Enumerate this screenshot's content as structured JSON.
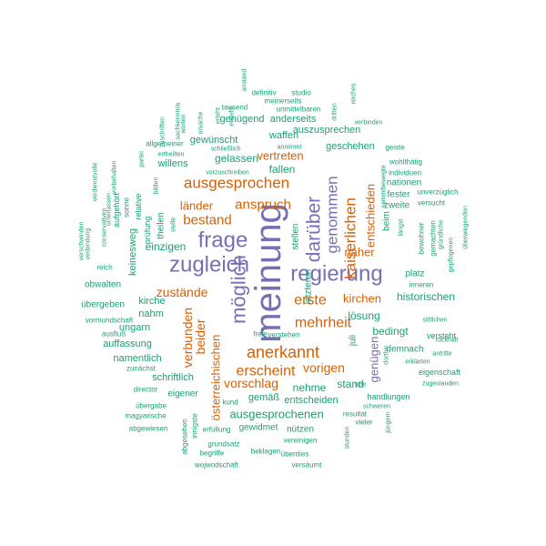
{
  "palette": {
    "purple": "#7570b3",
    "orange": "#d95f02",
    "teal": "#1b9e77"
  },
  "words": [
    {
      "text": "meinung",
      "color": "purple"
    },
    {
      "text": "regierung",
      "color": "purple"
    },
    {
      "text": "zugleich",
      "color": "purple"
    },
    {
      "text": "frage",
      "color": "purple"
    },
    {
      "text": "möglich",
      "color": "purple"
    },
    {
      "text": "darüber",
      "color": "purple"
    },
    {
      "text": "anerkannt",
      "color": "orange"
    },
    {
      "text": "ausgesprochen",
      "color": "orange"
    },
    {
      "text": "kaiserlichen",
      "color": "orange"
    },
    {
      "text": "genommen",
      "color": "purple"
    },
    {
      "text": "mehrheit",
      "color": "orange"
    },
    {
      "text": "erste",
      "color": "orange"
    },
    {
      "text": "anspruch",
      "color": "orange"
    },
    {
      "text": "österreichischen",
      "color": "orange"
    },
    {
      "text": "erscheint",
      "color": "orange"
    },
    {
      "text": "bestand",
      "color": "orange"
    },
    {
      "text": "vorigen",
      "color": "orange"
    },
    {
      "text": "vorschlag",
      "color": "orange"
    },
    {
      "text": "zustände",
      "color": "orange"
    },
    {
      "text": "beider",
      "color": "orange"
    },
    {
      "text": "verbunden",
      "color": "orange"
    },
    {
      "text": "entschieden",
      "color": "orange"
    },
    {
      "text": "genügen",
      "color": "purple"
    },
    {
      "text": "vertreten",
      "color": "orange"
    },
    {
      "text": "ausgesprochenen",
      "color": "teal"
    },
    {
      "text": "näher",
      "color": "orange"
    },
    {
      "text": "kirchen",
      "color": "orange"
    },
    {
      "text": "länder",
      "color": "orange"
    },
    {
      "text": "fallen",
      "color": "teal"
    },
    {
      "text": "gelassen",
      "color": "teal"
    },
    {
      "text": "nehme",
      "color": "teal"
    },
    {
      "text": "stand",
      "color": "teal"
    },
    {
      "text": "lösung",
      "color": "teal"
    },
    {
      "text": "bedingt",
      "color": "teal"
    },
    {
      "text": "historischen",
      "color": "teal"
    },
    {
      "text": "einzigen",
      "color": "teal"
    },
    {
      "text": "nahm",
      "color": "teal"
    },
    {
      "text": "kirche",
      "color": "teal"
    },
    {
      "text": "ungarn",
      "color": "teal"
    },
    {
      "text": "auffassung",
      "color": "teal"
    },
    {
      "text": "namentlich",
      "color": "teal"
    },
    {
      "text": "schriftlich",
      "color": "teal"
    },
    {
      "text": "gemäß",
      "color": "teal"
    },
    {
      "text": "entscheiden",
      "color": "teal"
    },
    {
      "text": "geschehen",
      "color": "teal"
    },
    {
      "text": "gewünscht",
      "color": "teal"
    },
    {
      "text": "waffen",
      "color": "teal"
    },
    {
      "text": "auszusprechen",
      "color": "teal"
    },
    {
      "text": "genügend",
      "color": "teal"
    },
    {
      "text": "anderseits",
      "color": "teal"
    },
    {
      "text": "willens",
      "color": "teal"
    },
    {
      "text": "keinesweg",
      "color": "teal"
    },
    {
      "text": "theilen",
      "color": "teal"
    },
    {
      "text": "letzteren",
      "color": "teal"
    },
    {
      "text": "stellen",
      "color": "teal"
    },
    {
      "text": "juli",
      "color": "teal"
    },
    {
      "text": "platz",
      "color": "teal"
    },
    {
      "text": "beim",
      "color": "teal"
    },
    {
      "text": "nationen",
      "color": "teal"
    },
    {
      "text": "fester",
      "color": "teal"
    },
    {
      "text": "zweite",
      "color": "teal"
    },
    {
      "text": "demnach",
      "color": "teal"
    },
    {
      "text": "nützen",
      "color": "teal"
    },
    {
      "text": "gewidmet",
      "color": "teal"
    },
    {
      "text": "eigener",
      "color": "teal"
    },
    {
      "text": "übergeben",
      "color": "teal"
    },
    {
      "text": "obwalten",
      "color": "teal"
    },
    {
      "text": "prüfung",
      "color": "teal"
    },
    {
      "text": "relative",
      "color": "teal"
    },
    {
      "text": "aufgehört",
      "color": "teal"
    },
    {
      "text": "verstehen",
      "color": "teal"
    },
    {
      "text": "freie",
      "color": "teal"
    },
    {
      "text": "versteht",
      "color": "teal"
    },
    {
      "text": "eigenschaft",
      "color": "teal"
    },
    {
      "text": "handlungen",
      "color": "teal"
    },
    {
      "text": "resultat",
      "color": "teal"
    },
    {
      "text": "vereinigen",
      "color": "teal"
    },
    {
      "text": "überdies",
      "color": "teal"
    },
    {
      "text": "versäumt",
      "color": "teal"
    },
    {
      "text": "erfüllung",
      "color": "teal"
    },
    {
      "text": "grundsatz",
      "color": "teal"
    },
    {
      "text": "begriffe",
      "color": "teal"
    },
    {
      "text": "beklagen",
      "color": "teal"
    },
    {
      "text": "wojwodschaft",
      "color": "teal"
    },
    {
      "text": "abgesehen",
      "color": "teal"
    },
    {
      "text": "innigste",
      "color": "teal"
    },
    {
      "text": "kund",
      "color": "teal"
    },
    {
      "text": "director",
      "color": "teal"
    },
    {
      "text": "übergabe",
      "color": "teal"
    },
    {
      "text": "magyarische",
      "color": "teal"
    },
    {
      "text": "abgewiesen",
      "color": "teal"
    },
    {
      "text": "zunächst",
      "color": "teal"
    },
    {
      "text": "ausfluß",
      "color": "teal"
    },
    {
      "text": "vormundschaft",
      "color": "teal"
    },
    {
      "text": "verbindung",
      "color": "teal"
    },
    {
      "text": "reich",
      "color": "teal"
    },
    {
      "text": "verschwinden",
      "color": "teal"
    },
    {
      "text": "verdienstvolle",
      "color": "teal"
    },
    {
      "text": "conservativen",
      "color": "teal"
    },
    {
      "text": "unterlassen",
      "color": "teal"
    },
    {
      "text": "vorbehalten",
      "color": "teal"
    },
    {
      "text": "sonne",
      "color": "teal"
    },
    {
      "text": "bilden",
      "color": "teal"
    },
    {
      "text": "partei",
      "color": "teal"
    },
    {
      "text": "zuschriften",
      "color": "teal"
    },
    {
      "text": "worten",
      "color": "teal"
    },
    {
      "text": "ursache",
      "color": "teal"
    },
    {
      "text": "sachkenntnis",
      "color": "teal"
    },
    {
      "text": "stelle",
      "color": "teal"
    },
    {
      "text": "erteht",
      "color": "teal"
    },
    {
      "text": "ersteht",
      "color": "teal"
    },
    {
      "text": "tausend",
      "color": "teal"
    },
    {
      "text": "definitiv",
      "color": "teal"
    },
    {
      "text": "studio",
      "color": "teal"
    },
    {
      "text": "anstand",
      "color": "teal"
    },
    {
      "text": "meinerseits",
      "color": "teal"
    },
    {
      "text": "unmittelbaren",
      "color": "teal"
    },
    {
      "text": "dritten",
      "color": "teal"
    },
    {
      "text": "reiches",
      "color": "teal"
    },
    {
      "text": "verbinden",
      "color": "teal"
    },
    {
      "text": "allgemeiner",
      "color": "teal"
    },
    {
      "text": "ertheilten",
      "color": "teal"
    },
    {
      "text": "schließlich",
      "color": "teal"
    },
    {
      "text": "annimmt",
      "color": "teal"
    },
    {
      "text": "vorzuschreiben",
      "color": "teal"
    },
    {
      "text": "geiste",
      "color": "teal"
    },
    {
      "text": "wohlthätig",
      "color": "teal"
    },
    {
      "text": "individuen",
      "color": "teal"
    },
    {
      "text": "sammtbewegte",
      "color": "teal"
    },
    {
      "text": "unverzüglich",
      "color": "teal"
    },
    {
      "text": "versucht",
      "color": "teal"
    },
    {
      "text": "längst",
      "color": "teal"
    },
    {
      "text": "bewohner",
      "color": "teal"
    },
    {
      "text": "gemachten",
      "color": "teal"
    },
    {
      "text": "gründliche",
      "color": "teal"
    },
    {
      "text": "gepflogenen",
      "color": "teal"
    },
    {
      "text": "überwiegenden",
      "color": "teal"
    },
    {
      "text": "inneren",
      "color": "teal"
    },
    {
      "text": "sittlichen",
      "color": "teal"
    },
    {
      "text": "rückhalt",
      "color": "teal"
    },
    {
      "text": "antritte",
      "color": "teal"
    },
    {
      "text": "erklärten",
      "color": "teal"
    },
    {
      "text": "dorthin",
      "color": "teal"
    },
    {
      "text": "zugestanden",
      "color": "teal"
    },
    {
      "text": "schweren",
      "color": "teal"
    },
    {
      "text": "vieler",
      "color": "teal"
    },
    {
      "text": "jüngern",
      "color": "teal"
    },
    {
      "text": "stunden",
      "color": "teal"
    },
    {
      "text": "sine",
      "color": "teal"
    }
  ]
}
